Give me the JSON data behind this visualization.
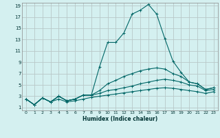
{
  "xlabel": "Humidex (Indice chaleur)",
  "background_color": "#d4f0f0",
  "grid_color": "#b8c8c8",
  "line_color": "#006666",
  "xlim": [
    -0.5,
    23.5
  ],
  "ylim": [
    0.5,
    19.5
  ],
  "xticks": [
    0,
    1,
    2,
    3,
    4,
    5,
    6,
    7,
    8,
    9,
    10,
    11,
    12,
    13,
    14,
    15,
    16,
    17,
    18,
    19,
    20,
    21,
    22,
    23
  ],
  "yticks": [
    1,
    3,
    5,
    7,
    9,
    11,
    13,
    15,
    17,
    19
  ],
  "lines": [
    [
      2.5,
      1.5,
      2.7,
      2.0,
      3.0,
      2.2,
      2.5,
      3.2,
      3.2,
      8.2,
      12.5,
      12.5,
      14.2,
      17.5,
      18.2,
      19.2,
      17.5,
      13.2,
      9.2,
      7.2,
      5.5,
      5.2,
      4.2,
      4.5
    ],
    [
      2.5,
      1.5,
      2.7,
      2.0,
      3.0,
      2.2,
      2.5,
      3.2,
      3.2,
      4.0,
      5.2,
      5.8,
      6.5,
      7.0,
      7.5,
      7.8,
      8.0,
      7.8,
      7.0,
      6.5,
      5.5,
      5.2,
      4.2,
      4.5
    ],
    [
      2.5,
      1.5,
      2.7,
      2.0,
      3.0,
      2.2,
      2.5,
      3.2,
      3.2,
      3.5,
      4.0,
      4.2,
      4.5,
      4.8,
      5.2,
      5.5,
      5.8,
      6.0,
      5.8,
      5.5,
      5.0,
      4.8,
      4.0,
      4.2
    ],
    [
      2.5,
      1.5,
      2.7,
      2.0,
      2.5,
      2.0,
      2.2,
      2.5,
      2.8,
      3.0,
      3.2,
      3.4,
      3.6,
      3.8,
      4.0,
      4.2,
      4.4,
      4.5,
      4.4,
      4.2,
      4.0,
      3.8,
      3.5,
      3.8
    ]
  ]
}
